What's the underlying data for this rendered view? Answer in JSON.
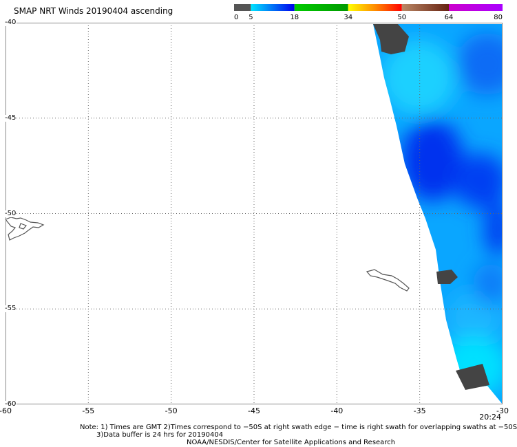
{
  "title": "SMAP NRT Winds 20190404 ascending",
  "colorbar": {
    "ticks": [
      "0",
      "5",
      "18",
      "34",
      "50",
      "64",
      "80"
    ],
    "segments": [
      {
        "from": 0,
        "to": 5,
        "colors": [
          "#555555",
          "#555555"
        ]
      },
      {
        "from": 5,
        "to": 18,
        "colors": [
          "#00e5ff",
          "#0000ee"
        ]
      },
      {
        "from": 18,
        "to": 34,
        "colors": [
          "#00cc00",
          "#009900"
        ]
      },
      {
        "from": 34,
        "to": 50,
        "colors": [
          "#ffff00",
          "#ff8c00",
          "#ff0000"
        ]
      },
      {
        "from": 50,
        "to": 64,
        "colors": [
          "#bb8866",
          "#662211"
        ]
      },
      {
        "from": 64,
        "to": 80,
        "colors": [
          "#cc00cc",
          "#aa00ff"
        ]
      }
    ]
  },
  "map": {
    "lon_range": [
      -60,
      -30
    ],
    "lat_range": [
      -40,
      -60
    ],
    "x_tick_labels": [
      "-60",
      "-55",
      "-50",
      "-45",
      "-40",
      "-35",
      "-30"
    ],
    "y_tick_labels": [
      "-40",
      "-45",
      "-50",
      "-55",
      "-60"
    ],
    "gridlines": "dotted",
    "wind_colors": {
      "low": "#00ddff",
      "mid": "#0099ff",
      "high": "#0033ee",
      "no_data": "#444444",
      "coastline": "#555555"
    }
  },
  "time_label": "20:24",
  "notes": {
    "line1": "Note: 1) Times are GMT 2)Times correspond to −50S at right swath edge − time is right swath for overlapping swaths at −50S",
    "line2": "3)Data buffer is 24 hrs for 20190404",
    "line3": "NOAA/NESDIS/Center for Satellite Applications and Research"
  }
}
